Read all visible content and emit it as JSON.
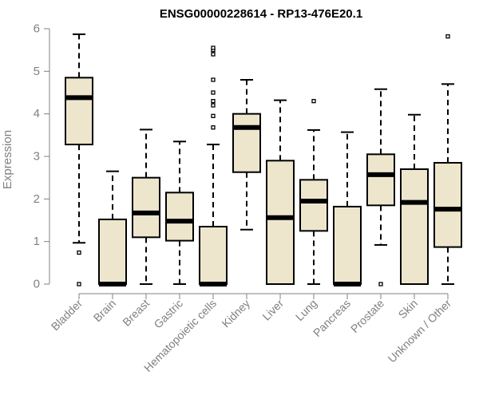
{
  "chart_data": {
    "type": "boxplot",
    "title": "ENSG00000228614 - RP13-476E20.1",
    "xlabel": "",
    "ylabel": "Expression",
    "ylim": [
      0,
      6
    ],
    "yticks": [
      0,
      1,
      2,
      3,
      4,
      5,
      6
    ],
    "categories": [
      "Bladder",
      "Brain",
      "Breast",
      "Gastric",
      "Hematopoietic cells",
      "Kidney",
      "Liver",
      "Lung",
      "Pancreas",
      "Prostate",
      "Skin",
      "Unknown / Other"
    ],
    "boxes": [
      {
        "name": "Bladder",
        "whisker_low": 0.97,
        "q1": 3.28,
        "median": 4.38,
        "q3": 4.85,
        "whisker_high": 5.87,
        "outliers": [
          0.74,
          0.0
        ]
      },
      {
        "name": "Brain",
        "whisker_low": 0.0,
        "q1": 0.0,
        "median": 0.0,
        "q3": 1.52,
        "whisker_high": 2.65,
        "outliers": []
      },
      {
        "name": "Breast",
        "whisker_low": 0.0,
        "q1": 1.1,
        "median": 1.67,
        "q3": 2.5,
        "whisker_high": 3.63,
        "outliers": []
      },
      {
        "name": "Gastric",
        "whisker_low": 0.0,
        "q1": 1.02,
        "median": 1.48,
        "q3": 2.15,
        "whisker_high": 3.35,
        "outliers": []
      },
      {
        "name": "Hematopoietic cells",
        "whisker_low": 0.0,
        "q1": 0.0,
        "median": 0.0,
        "q3": 1.35,
        "whisker_high": 3.28,
        "outliers": [
          3.68,
          3.95,
          4.2,
          4.3,
          4.5,
          4.8,
          5.4,
          5.5,
          5.55
        ]
      },
      {
        "name": "Kidney",
        "whisker_low": 1.28,
        "q1": 2.63,
        "median": 3.68,
        "q3": 4.0,
        "whisker_high": 4.8,
        "outliers": []
      },
      {
        "name": "Liver",
        "whisker_low": 0.0,
        "q1": 0.0,
        "median": 1.56,
        "q3": 2.9,
        "whisker_high": 4.32,
        "outliers": []
      },
      {
        "name": "Lung",
        "whisker_low": 0.0,
        "q1": 1.25,
        "median": 1.95,
        "q3": 2.45,
        "whisker_high": 3.62,
        "outliers": [
          4.3
        ]
      },
      {
        "name": "Pancreas",
        "whisker_low": 0.0,
        "q1": 0.0,
        "median": 0.0,
        "q3": 1.82,
        "whisker_high": 3.57,
        "outliers": []
      },
      {
        "name": "Prostate",
        "whisker_low": 0.92,
        "q1": 1.85,
        "median": 2.57,
        "q3": 3.05,
        "whisker_high": 4.58,
        "outliers": [
          0.0
        ]
      },
      {
        "name": "Skin",
        "whisker_low": 0.0,
        "q1": 0.0,
        "median": 1.92,
        "q3": 2.7,
        "whisker_high": 3.98,
        "outliers": []
      },
      {
        "name": "Unknown / Other",
        "whisker_low": 0.0,
        "q1": 0.87,
        "median": 1.76,
        "q3": 2.85,
        "whisker_high": 4.7,
        "outliers": [
          5.82
        ]
      }
    ],
    "grid": false,
    "legend": "none"
  },
  "colors": {
    "box_fill": "#ede6cd",
    "line": "#000000",
    "axis": "#808080"
  }
}
